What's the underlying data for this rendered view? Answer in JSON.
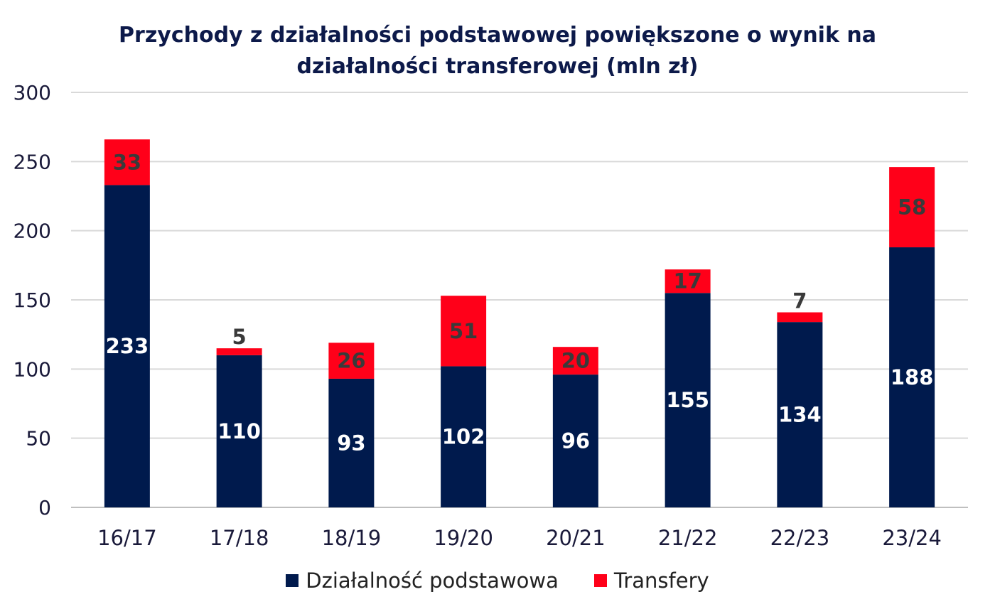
{
  "chart_data": {
    "type": "bar",
    "stacked": true,
    "title_lines": [
      "Przychody z działalności  podstawowej powiększone  o wynik na",
      "działalności  transferowej (mln zł)"
    ],
    "categories": [
      "16/17",
      "17/18",
      "18/19",
      "19/20",
      "20/21",
      "21/22",
      "22/23",
      "23/24"
    ],
    "series": [
      {
        "name": "Działalność podstawowa",
        "values": [
          233,
          110,
          93,
          102,
          96,
          155,
          134,
          188
        ],
        "color": "#001a4d",
        "label_color": "#ffffff"
      },
      {
        "name": "Transfery",
        "values": [
          33,
          5,
          26,
          51,
          20,
          17,
          7,
          58
        ],
        "color": "#ff0019",
        "label_color": "#3a3a3a"
      }
    ],
    "ylim": [
      0,
      300
    ],
    "yticks": [
      0,
      50,
      100,
      150,
      200,
      250,
      300
    ],
    "grid": true,
    "legend_position": "bottom"
  }
}
